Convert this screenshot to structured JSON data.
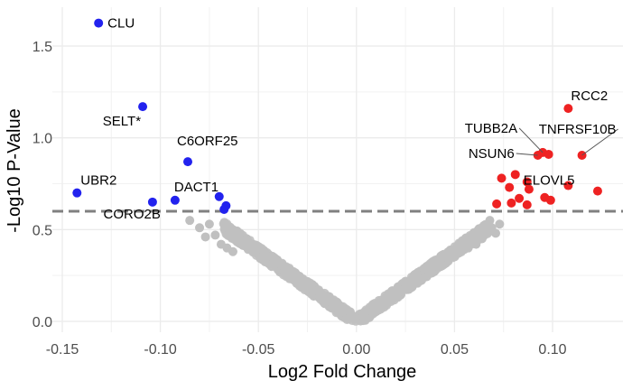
{
  "chart_data": {
    "type": "scatter",
    "title": "",
    "xlabel": "Log2 Fold Change",
    "ylabel": "-Log10 P-Value",
    "xlim": [
      -0.15,
      0.125
    ],
    "ylim": [
      0,
      1.65
    ],
    "x_ticks": [
      -0.15,
      -0.1,
      -0.05,
      0.0,
      0.05,
      0.1
    ],
    "x_tick_labels": [
      "-0.15",
      "-0.10",
      "-0.05",
      "0.00",
      "0.05",
      "0.10"
    ],
    "y_ticks": [
      0.0,
      0.5,
      1.0,
      1.5
    ],
    "y_tick_labels": [
      "0.0",
      "0.5",
      "1.0",
      "1.5"
    ],
    "grid": true,
    "threshold": {
      "y": 0.6,
      "style": "dashed",
      "color": "#808080"
    },
    "colors": {
      "down": "#2222ee",
      "up": "#ee2222",
      "ns": "#c0c0c0"
    },
    "series": [
      {
        "name": "down",
        "points": [
          {
            "x": -0.1315,
            "y": 1.625,
            "label": "CLU"
          },
          {
            "x": -0.109,
            "y": 1.17,
            "label": "SELT*"
          },
          {
            "x": -0.086,
            "y": 0.87,
            "label": "C6ORF25"
          },
          {
            "x": -0.1425,
            "y": 0.7,
            "label": "UBR2"
          },
          {
            "x": -0.104,
            "y": 0.65,
            "label": "CORO2B"
          },
          {
            "x": -0.0925,
            "y": 0.66,
            "label": "DACT1"
          },
          {
            "x": -0.07,
            "y": 0.68
          },
          {
            "x": -0.0665,
            "y": 0.63
          },
          {
            "x": -0.0675,
            "y": 0.61
          }
        ]
      },
      {
        "name": "up",
        "points": [
          {
            "x": 0.108,
            "y": 1.16,
            "label": "RCC2"
          },
          {
            "x": 0.115,
            "y": 0.905,
            "label": "TNFRSF10B"
          },
          {
            "x": 0.095,
            "y": 0.92,
            "label": "TUBB2A"
          },
          {
            "x": 0.0925,
            "y": 0.905,
            "label": "NSUN6"
          },
          {
            "x": 0.098,
            "y": 0.91
          },
          {
            "x": 0.081,
            "y": 0.8,
            "label": "ELOVL5"
          },
          {
            "x": 0.074,
            "y": 0.78
          },
          {
            "x": 0.078,
            "y": 0.73
          },
          {
            "x": 0.087,
            "y": 0.76
          },
          {
            "x": 0.088,
            "y": 0.72
          },
          {
            "x": 0.108,
            "y": 0.74
          },
          {
            "x": 0.123,
            "y": 0.71
          },
          {
            "x": 0.083,
            "y": 0.67
          },
          {
            "x": 0.096,
            "y": 0.675
          },
          {
            "x": 0.0715,
            "y": 0.64
          },
          {
            "x": 0.079,
            "y": 0.645
          },
          {
            "x": 0.087,
            "y": 0.635
          },
          {
            "x": 0.099,
            "y": 0.66
          }
        ]
      },
      {
        "name": "not significant",
        "description": "Dense V-shaped cloud of grey points with |x| up to about 0.08, following roughly y = 7.6·|x| with spread.",
        "points": [
          {
            "x": -0.075,
            "y": 0.53
          },
          {
            "x": -0.08,
            "y": 0.51
          },
          {
            "x": -0.085,
            "y": 0.55
          },
          {
            "x": -0.072,
            "y": 0.47
          },
          {
            "x": -0.077,
            "y": 0.46
          },
          {
            "x": -0.069,
            "y": 0.42
          },
          {
            "x": -0.066,
            "y": 0.4
          },
          {
            "x": -0.063,
            "y": 0.38
          },
          {
            "x": 0.068,
            "y": 0.55
          },
          {
            "x": 0.073,
            "y": 0.53
          },
          {
            "x": 0.067,
            "y": 0.49
          },
          {
            "x": 0.071,
            "y": 0.48
          },
          {
            "x": 0.064,
            "y": 0.45
          },
          {
            "x": 0.061,
            "y": 0.42
          },
          {
            "x": 0.057,
            "y": 0.4
          },
          {
            "x": 0.069,
            "y": 0.51
          }
        ]
      }
    ]
  }
}
